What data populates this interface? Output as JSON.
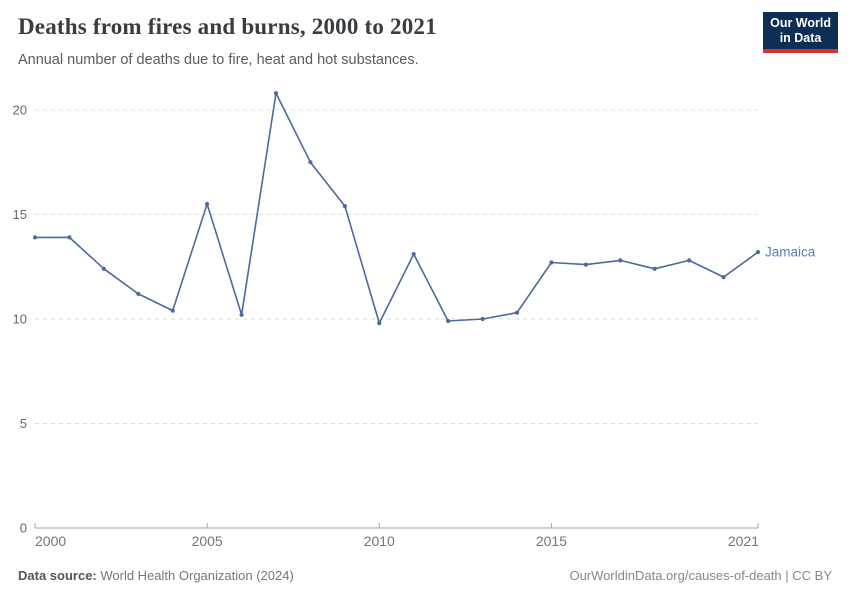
{
  "header": {
    "title": "Deaths from fires and burns, 2000 to 2021",
    "subtitle": "Annual number of deaths due to fire, heat and hot substances.",
    "logo": {
      "line1": "Our World",
      "line2": "in Data"
    }
  },
  "chart_data": {
    "type": "line",
    "title": "Deaths from fires and burns, 2000 to 2021",
    "subtitle": "Annual number of deaths due to fire, heat and hot substances.",
    "x": [
      2000,
      2001,
      2002,
      2003,
      2004,
      2005,
      2006,
      2007,
      2008,
      2009,
      2010,
      2011,
      2012,
      2013,
      2014,
      2015,
      2016,
      2017,
      2018,
      2019,
      2020,
      2021
    ],
    "series": [
      {
        "name": "Jamaica",
        "color": "#4c6a9e",
        "label_color": "#5b7db8",
        "values": [
          13.9,
          13.9,
          12.4,
          11.2,
          10.4,
          15.5,
          10.2,
          20.8,
          17.5,
          15.4,
          9.8,
          13.1,
          9.9,
          10.0,
          10.3,
          12.7,
          12.6,
          12.8,
          12.4,
          12.8,
          12.0,
          13.2
        ]
      }
    ],
    "xlim": [
      2000,
      2021
    ],
    "ylim": [
      0,
      21
    ],
    "x_ticks": [
      2000,
      2005,
      2010,
      2015,
      2021
    ],
    "y_ticks": [
      0,
      5,
      10,
      15,
      20
    ],
    "grid": "horizontal-dashed",
    "legend_position": "end-of-line-label"
  },
  "colors": {
    "grid": "#dadada",
    "axis": "#a3a3a3",
    "y_tick_label": "#696969",
    "x_tick_label": "#757575"
  },
  "footer": {
    "source_label": "Data source:",
    "source_value": " World Health Organization (2024)",
    "credit": "OurWorldinData.org/causes-of-death | CC BY"
  }
}
